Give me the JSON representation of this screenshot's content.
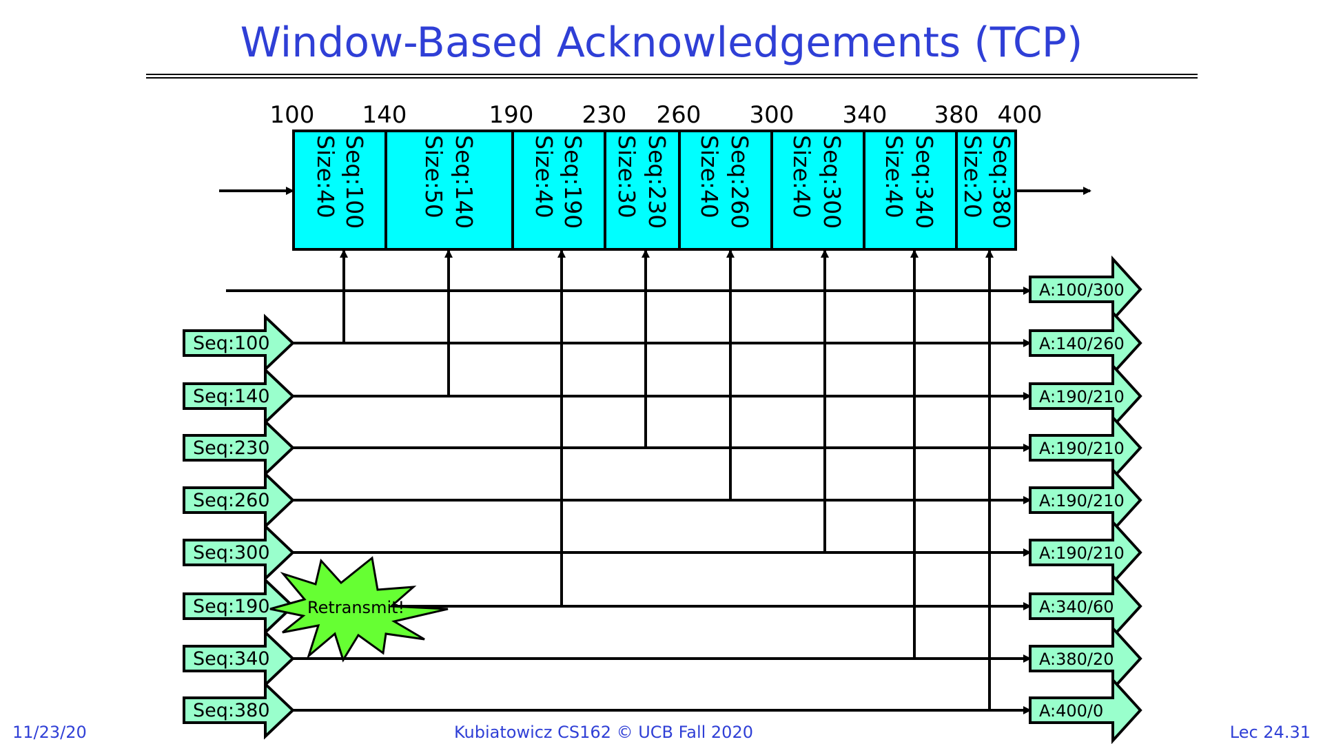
{
  "title": "Window-Based Acknowledgements (TCP)",
  "ticks": [
    "100",
    "140",
    "190",
    "230",
    "260",
    "300",
    "340",
    "380",
    "400"
  ],
  "segments": [
    {
      "seq": "Seq:100",
      "size": "Size:40"
    },
    {
      "seq": "Seq:140",
      "size": "Size:50"
    },
    {
      "seq": "Seq:190",
      "size": "Size:40"
    },
    {
      "seq": "Seq:230",
      "size": "Size:30"
    },
    {
      "seq": "Seq:260",
      "size": "Size:40"
    },
    {
      "seq": "Seq:300",
      "size": "Size:40"
    },
    {
      "seq": "Seq:340",
      "size": "Size:40"
    },
    {
      "seq": "Seq:380",
      "size": "Size:20"
    }
  ],
  "rows": [
    {
      "send": "",
      "ack": "A:100/300"
    },
    {
      "send": "Seq:100",
      "ack": "A:140/260"
    },
    {
      "send": "Seq:140",
      "ack": "A:190/210"
    },
    {
      "send": "Seq:230",
      "ack": "A:190/210"
    },
    {
      "send": "Seq:260",
      "ack": "A:190/210"
    },
    {
      "send": "Seq:300",
      "ack": "A:190/210"
    },
    {
      "send": "Seq:190",
      "ack": "A:340/60"
    },
    {
      "send": "Seq:340",
      "ack": "A:380/20"
    },
    {
      "send": "Seq:380",
      "ack": "A:400/0"
    }
  ],
  "retransmit": "Retransmit!",
  "footer": {
    "date": "11/23/20",
    "course": "Kubiatowicz CS162 © UCB Fall 2020",
    "lecture": "Lec 24.31"
  },
  "colors": {
    "title": "#2f3fd6",
    "segment_fill": "#00ffff",
    "arrow_fill": "#99ffcc",
    "burst_fill": "#66ff33"
  }
}
